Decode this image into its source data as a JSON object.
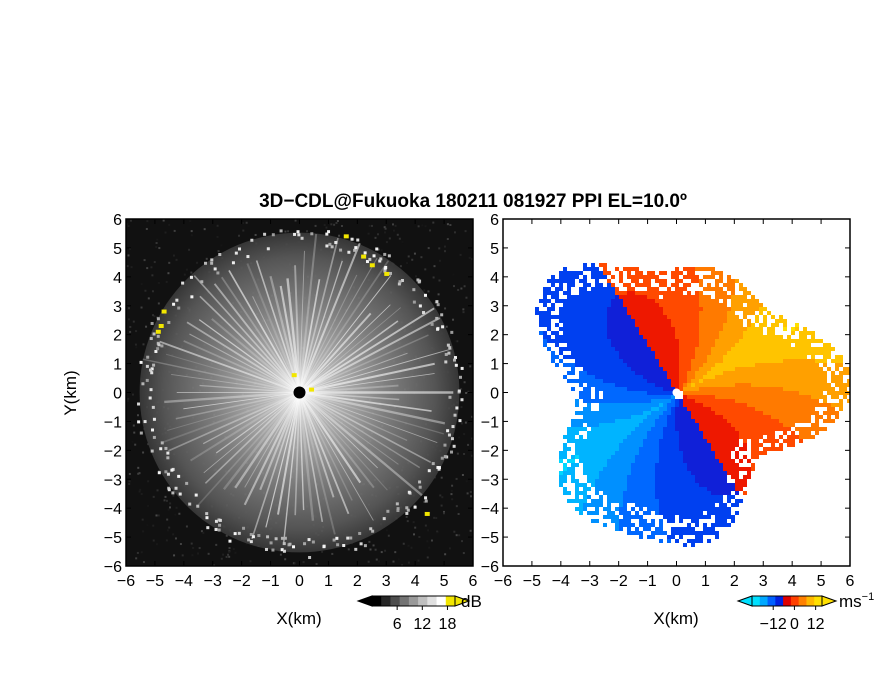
{
  "figure": {
    "title": "3D−CDL@Fukuoka 180211 081927 PPI EL=10.0º"
  },
  "chart_data": [
    {
      "type": "heatmap",
      "panel": "reflectivity",
      "xlabel": "X(km)",
      "ylabel": "Y(km)",
      "xlim": [
        -6,
        6
      ],
      "ylim": [
        -6,
        6
      ],
      "xticks": [
        -6,
        -5,
        -4,
        -3,
        -2,
        -1,
        0,
        1,
        2,
        3,
        4,
        5,
        6
      ],
      "yticks": [
        -6,
        -5,
        -4,
        -3,
        -2,
        -1,
        0,
        1,
        2,
        3,
        4,
        5,
        6
      ],
      "xtick_labels": [
        "−6",
        "−5",
        "−4",
        "−3",
        "−2",
        "−1",
        "0",
        "1",
        "2",
        "3",
        "4",
        "5",
        "6"
      ],
      "ytick_labels": [
        "−6",
        "−5",
        "−4",
        "−3",
        "−2",
        "−1",
        "0",
        "1",
        "2",
        "3",
        "4",
        "5",
        "6"
      ],
      "colorbar": {
        "unit": "dB",
        "ticks": [
          6,
          12,
          18
        ],
        "tick_labels": [
          "6",
          "12",
          "18"
        ],
        "colors": [
          "#000000",
          "#262626",
          "#4d4d4d",
          "#737373",
          "#999999",
          "#bfbfbf",
          "#e0e0e0",
          "#ffffff",
          "#f2e600"
        ]
      },
      "data_extent_km": 5.7
    },
    {
      "type": "heatmap",
      "panel": "doppler_velocity",
      "xlabel": "X(km)",
      "ylabel": "",
      "xlim": [
        -6,
        6
      ],
      "ylim": [
        -6,
        6
      ],
      "xticks": [
        -6,
        -5,
        -4,
        -3,
        -2,
        -1,
        0,
        1,
        2,
        3,
        4,
        5,
        6
      ],
      "yticks": [
        -6,
        -5,
        -4,
        -3,
        -2,
        -1,
        0,
        1,
        2,
        3,
        4,
        5,
        6
      ],
      "xtick_labels": [
        "−6",
        "−5",
        "−4",
        "−3",
        "−2",
        "−1",
        "0",
        "1",
        "2",
        "3",
        "4",
        "5",
        "6"
      ],
      "ytick_labels": [
        "−6",
        "−5",
        "−4",
        "−3",
        "−2",
        "−1",
        "0",
        "1",
        "2",
        "3",
        "4",
        "5",
        "6"
      ],
      "colorbar": {
        "unit": "ms",
        "unit_exponent": "−1",
        "ticks": [
          -12,
          0,
          12
        ],
        "tick_labels": [
          "−12",
          "0",
          "12"
        ],
        "colors": [
          "#00e0ff",
          "#00a8ff",
          "#0060ff",
          "#0020e0",
          "#e00000",
          "#ff4000",
          "#ff8000",
          "#ffb800",
          "#ffe000"
        ]
      },
      "data_extent_km": 5.7
    }
  ]
}
